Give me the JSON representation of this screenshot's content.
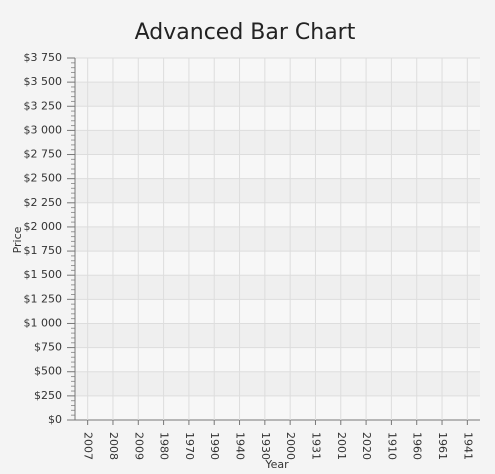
{
  "chart_data": {
    "type": "bar",
    "title": "Advanced Bar Chart",
    "x_label": "Year",
    "y_label": "Price",
    "categories": [
      "2007",
      "2008",
      "2009",
      "1980",
      "1970",
      "1990",
      "1940",
      "1930",
      "2000",
      "1931",
      "2001",
      "2020",
      "1910",
      "1960",
      "1961",
      "1941"
    ],
    "values": [
      0,
      0,
      0,
      0,
      0,
      0,
      0,
      0,
      0,
      0,
      0,
      0,
      0,
      0,
      0,
      0
    ],
    "color": "#f3622d",
    "ylim": [
      0,
      3750
    ],
    "yticks": [
      {
        "value": 0,
        "label": "$0"
      },
      {
        "value": 250,
        "label": "$250"
      },
      {
        "value": 500,
        "label": "$500"
      },
      {
        "value": 750,
        "label": "$750"
      },
      {
        "value": 1000,
        "label": "$1 000"
      },
      {
        "value": 1250,
        "label": "$1 250"
      },
      {
        "value": 1500,
        "label": "$1 500"
      },
      {
        "value": 1750,
        "label": "$1 750"
      },
      {
        "value": 2000,
        "label": "$2 000"
      },
      {
        "value": 2250,
        "label": "$2 250"
      },
      {
        "value": 2500,
        "label": "$2 500"
      },
      {
        "value": 2750,
        "label": "$2 750"
      },
      {
        "value": 3000,
        "label": "$3 000"
      },
      {
        "value": 3250,
        "label": "$3 250"
      },
      {
        "value": 3500,
        "label": "$3 500"
      },
      {
        "value": 3750,
        "label": "$3 750"
      }
    ],
    "grid": true
  }
}
